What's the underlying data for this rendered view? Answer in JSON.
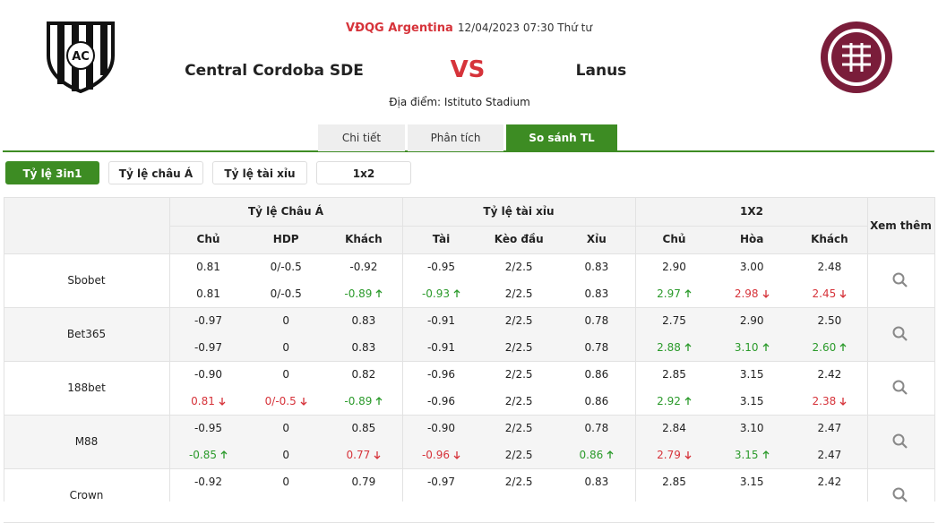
{
  "header": {
    "league": "VĐQG Argentina",
    "datetime": "12/04/2023 07:30 Thứ tư",
    "home_team": "Central Cordoba SDE",
    "vs": "VS",
    "away_team": "Lanus",
    "venue": "Địa điểm: Istituto Stadium"
  },
  "tabs": [
    {
      "label": "Chi tiết"
    },
    {
      "label": "Phân tích"
    },
    {
      "label": "So sánh TL",
      "active": true
    }
  ],
  "filters": [
    {
      "label": "Tỷ lệ 3in1",
      "active": true
    },
    {
      "label": "Tỷ lệ châu Á"
    },
    {
      "label": "Tỷ lệ tài xỉu"
    },
    {
      "label": "1x2"
    }
  ],
  "table": {
    "groups": [
      "Tỷ lệ Châu Á",
      "Tỷ lệ tài xỉu",
      "1X2"
    ],
    "columns": [
      "Chủ",
      "HDP",
      "Khách",
      "Tài",
      "Kèo đầu",
      "Xỉu",
      "Chủ",
      "Hòa",
      "Khách"
    ],
    "more": "Xem thêm",
    "rows": [
      {
        "bookmaker": "Sbobet",
        "lines": [
          [
            "0.81",
            "0/-0.5",
            "-0.92",
            "-0.95",
            "2/2.5",
            "0.83",
            "2.90",
            "3.00",
            "2.48"
          ],
          [
            "0.81",
            "0/-0.5",
            {
              "text": "-0.89",
              "trend": "up"
            },
            {
              "text": "-0.93",
              "trend": "up"
            },
            "2/2.5",
            "0.83",
            {
              "text": "2.97",
              "trend": "up"
            },
            {
              "text": "2.98",
              "trend": "down"
            },
            {
              "text": "2.45",
              "trend": "down"
            }
          ]
        ]
      },
      {
        "bookmaker": "Bet365",
        "lines": [
          [
            "-0.97",
            "0",
            "0.83",
            "-0.91",
            "2/2.5",
            "0.78",
            "2.75",
            "2.90",
            "2.50"
          ],
          [
            "-0.97",
            "0",
            "0.83",
            "-0.91",
            "2/2.5",
            "0.78",
            {
              "text": "2.88",
              "trend": "up"
            },
            {
              "text": "3.10",
              "trend": "up"
            },
            {
              "text": "2.60",
              "trend": "up"
            }
          ]
        ]
      },
      {
        "bookmaker": "188bet",
        "lines": [
          [
            "-0.90",
            "0",
            "0.82",
            "-0.96",
            "2/2.5",
            "0.86",
            "2.85",
            "3.15",
            "2.42"
          ],
          [
            {
              "text": "0.81",
              "trend": "down"
            },
            {
              "text": "0/-0.5",
              "trend": "down"
            },
            {
              "text": "-0.89",
              "trend": "up"
            },
            "-0.96",
            "2/2.5",
            "0.86",
            {
              "text": "2.92",
              "trend": "up"
            },
            "3.15",
            {
              "text": "2.38",
              "trend": "down"
            }
          ]
        ]
      },
      {
        "bookmaker": "M88",
        "lines": [
          [
            "-0.95",
            "0",
            "0.85",
            "-0.90",
            "2/2.5",
            "0.78",
            "2.84",
            "3.10",
            "2.47"
          ],
          [
            {
              "text": "-0.85",
              "trend": "up"
            },
            "0",
            {
              "text": "0.77",
              "trend": "down"
            },
            {
              "text": "-0.96",
              "trend": "down"
            },
            "2/2.5",
            {
              "text": "0.86",
              "trend": "up"
            },
            {
              "text": "2.79",
              "trend": "down"
            },
            {
              "text": "3.15",
              "trend": "up"
            },
            "2.47"
          ]
        ]
      },
      {
        "bookmaker": "Crown",
        "lines": [
          [
            "-0.92",
            "0",
            "0.79",
            "-0.97",
            "2/2.5",
            "0.83",
            "2.85",
            "3.15",
            "2.42"
          ]
        ]
      }
    ]
  }
}
